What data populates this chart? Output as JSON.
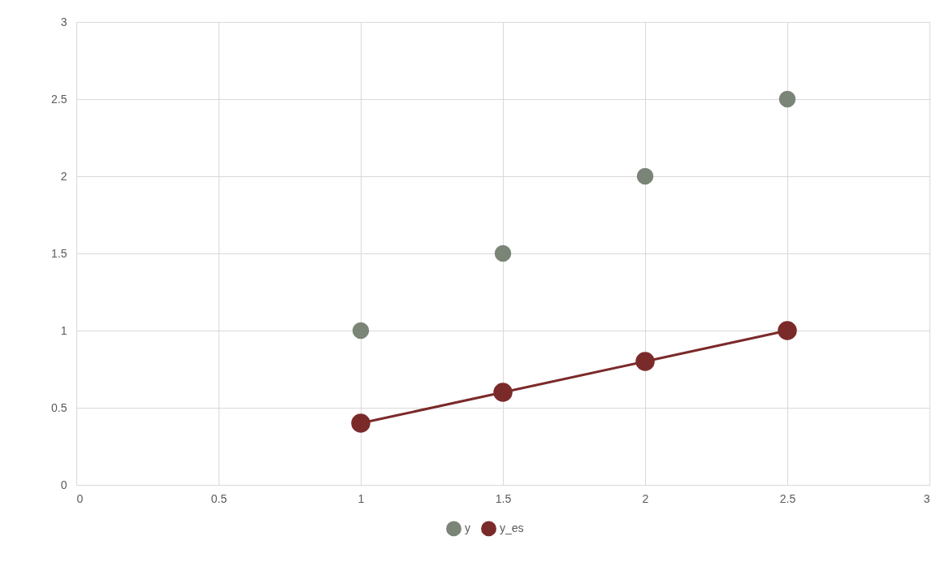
{
  "chart_data": {
    "type": "scatter",
    "series": [
      {
        "name": "y",
        "color": "#7a8577",
        "x": [
          1,
          1.5,
          2,
          2.5
        ],
        "values": [
          1,
          1.5,
          2,
          2.5
        ]
      },
      {
        "name": "y_es",
        "type": "line",
        "color": "#7b2a2a",
        "x": [
          1,
          1.5,
          2,
          2.5
        ],
        "values": [
          0.4,
          0.6,
          0.8,
          1.0
        ]
      }
    ],
    "xlim": [
      0,
      3
    ],
    "xticks": [
      0,
      0.5,
      1,
      1.5,
      2,
      2.5,
      3
    ],
    "ylim": [
      0,
      3
    ],
    "yticks": [
      0,
      0.5,
      1,
      1.5,
      2,
      2.5,
      3
    ],
    "grid": true,
    "legend": "bottom",
    "marker": "circle"
  }
}
